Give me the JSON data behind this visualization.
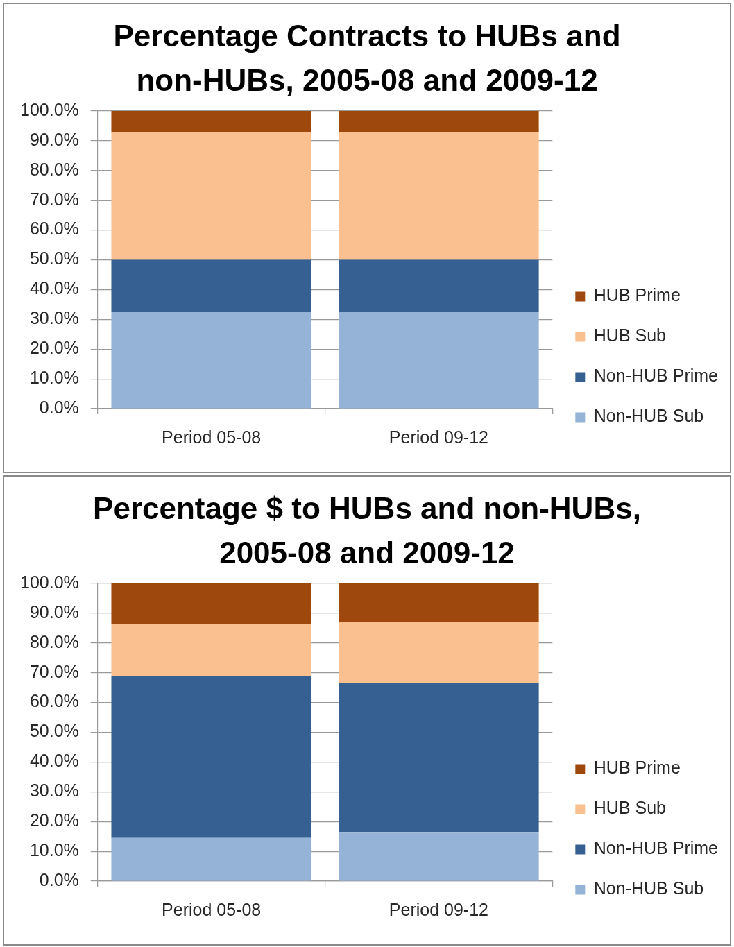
{
  "chart_data": [
    {
      "type": "bar",
      "title": "Percentage Contracts to HUBs and non-HUBs, 2005-08 and 2009-12",
      "categories": [
        "Period 05-08",
        "Period 09-12"
      ],
      "stacked": true,
      "series": [
        {
          "name": "Non-HUB Sub",
          "color": "#95b3d7",
          "values": [
            32.5,
            32.5
          ]
        },
        {
          "name": "Non-HUB Prime",
          "color": "#376092",
          "values": [
            17.5,
            17.5
          ]
        },
        {
          "name": "HUB Sub",
          "color": "#fac08f",
          "values": [
            43,
            43
          ]
        },
        {
          "name": "HUB Prime",
          "color": "#9e480e",
          "values": [
            7,
            7
          ]
        }
      ],
      "ylim": [
        0,
        100
      ],
      "yticks": [
        {
          "value": 0,
          "label": "0.0%"
        },
        {
          "value": 10,
          "label": "10.0%"
        },
        {
          "value": 20,
          "label": "20.0%"
        },
        {
          "value": 30,
          "label": "30.0%"
        },
        {
          "value": 40,
          "label": "40.0%"
        },
        {
          "value": 50,
          "label": "50.0%"
        },
        {
          "value": 60,
          "label": "60.0%"
        },
        {
          "value": 70,
          "label": "70.0%"
        },
        {
          "value": 80,
          "label": "80.0%"
        },
        {
          "value": 90,
          "label": "90.0%"
        },
        {
          "value": 100,
          "label": "100.0%"
        }
      ],
      "grid": "y",
      "legend": "right"
    },
    {
      "type": "bar",
      "title": "Percentage $ to HUBs and non-HUBs, 2005-08 and 2009-12",
      "categories": [
        "Period 05-08",
        "Period 09-12"
      ],
      "stacked": true,
      "series": [
        {
          "name": "Non-HUB Sub",
          "color": "#95b3d7",
          "values": [
            14.5,
            16.5
          ]
        },
        {
          "name": "Non-HUB Prime",
          "color": "#376092",
          "values": [
            54.5,
            50
          ]
        },
        {
          "name": "HUB Sub",
          "color": "#fac08f",
          "values": [
            17.5,
            20.5
          ]
        },
        {
          "name": "HUB Prime",
          "color": "#9e480e",
          "values": [
            13.5,
            13
          ]
        }
      ],
      "ylim": [
        0,
        100
      ],
      "yticks": [
        {
          "value": 0,
          "label": "0.0%"
        },
        {
          "value": 10,
          "label": "10.0%"
        },
        {
          "value": 20,
          "label": "20.0%"
        },
        {
          "value": 30,
          "label": "30.0%"
        },
        {
          "value": 40,
          "label": "40.0%"
        },
        {
          "value": 50,
          "label": "50.0%"
        },
        {
          "value": 60,
          "label": "60.0%"
        },
        {
          "value": 70,
          "label": "70.0%"
        },
        {
          "value": 80,
          "label": "80.0%"
        },
        {
          "value": 90,
          "label": "90.0%"
        },
        {
          "value": 100,
          "label": "100.0%"
        }
      ],
      "grid": "y",
      "legend": "right"
    }
  ]
}
